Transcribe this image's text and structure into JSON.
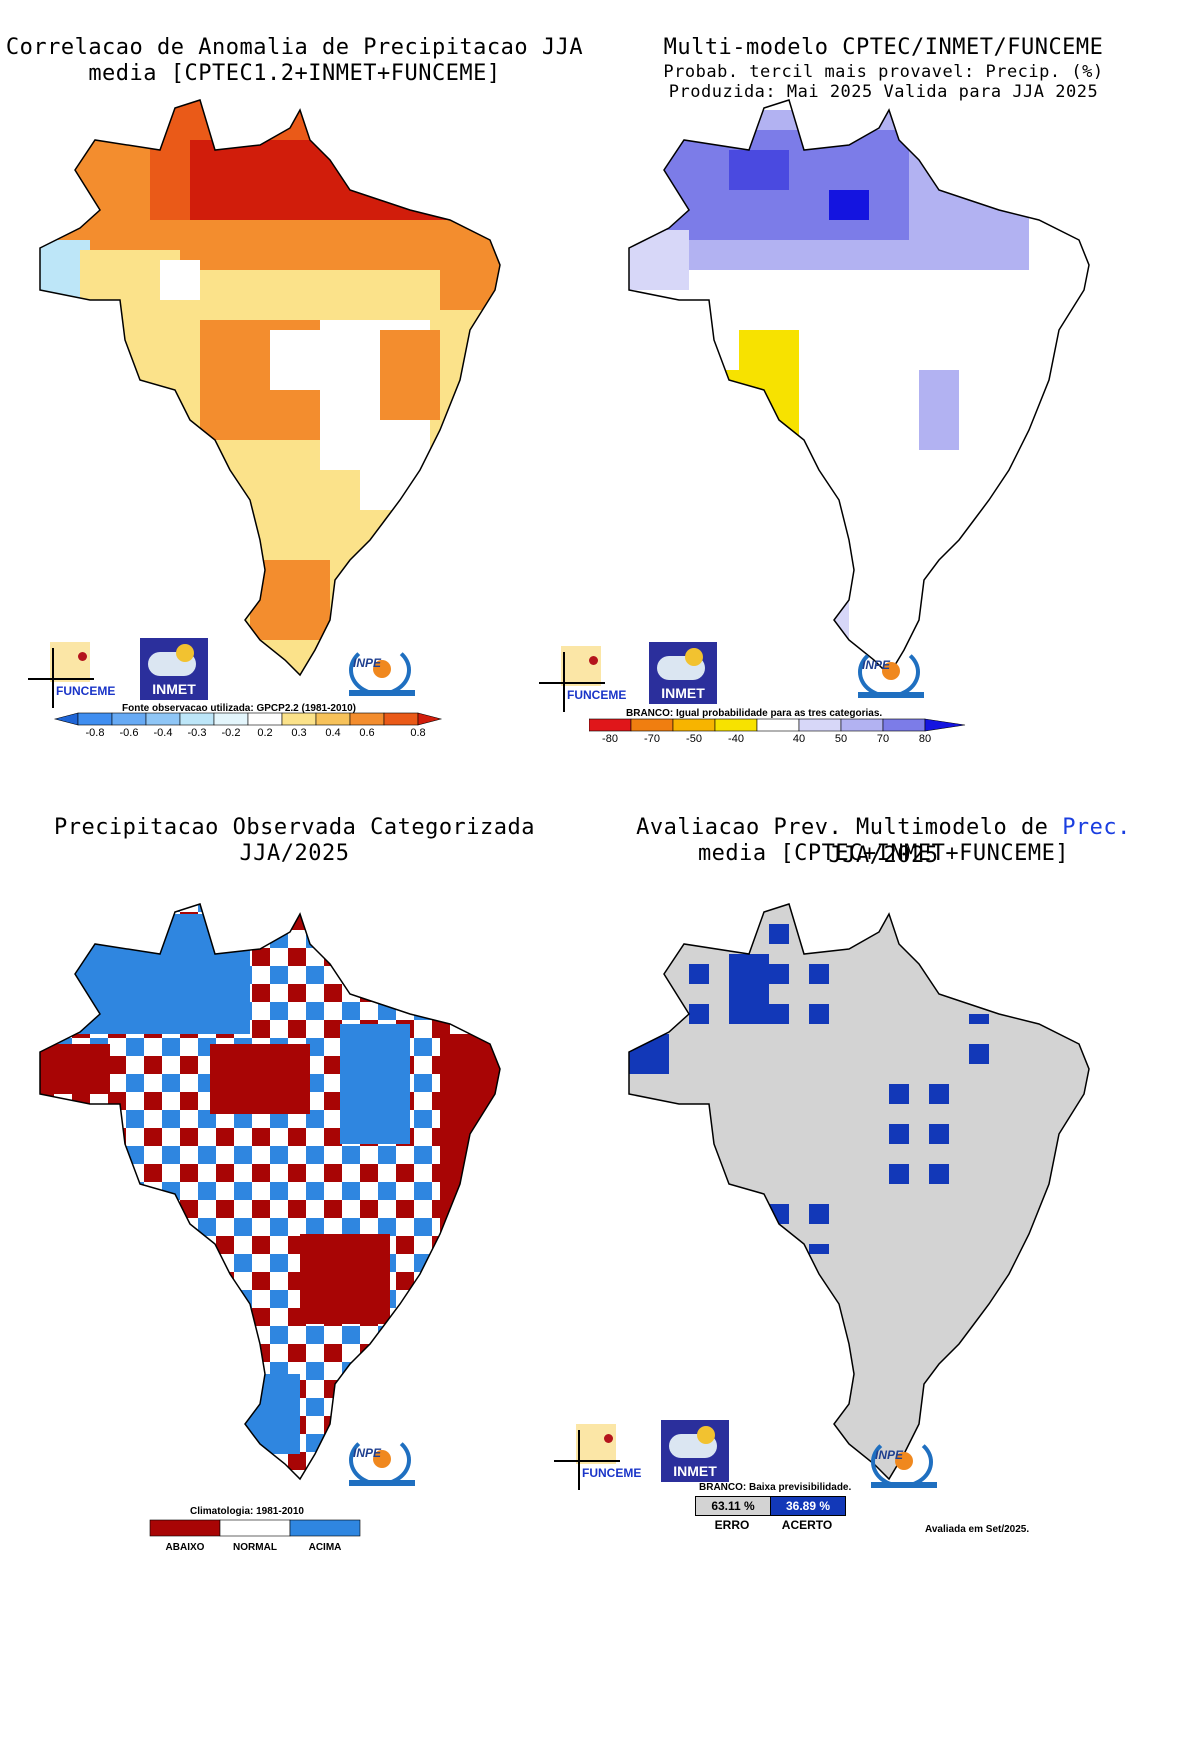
{
  "panels": [
    {
      "title_lines": [
        "Correlacao de Anomalia de Precipitacao JJA",
        "media [CPTEC1.2+INMET+FUNCEME]"
      ],
      "legend_note": "Fonte observacao utilizada: GPCP2.2 (1981-2010)",
      "legend_ticks": [
        "-0.8",
        "-0.6",
        "-0.4",
        "-0.3",
        "-0.2",
        "0.2",
        "0.3",
        "0.4",
        "0.6",
        "0.8"
      ],
      "legend_colors": [
        "#1f65d6",
        "#3f8ef0",
        "#67aaf4",
        "#8fc6f6",
        "#bde6f8",
        "#ffffff",
        "#fbe28a",
        "#f7c25a",
        "#f38d2e",
        "#ea5a18",
        "#d11d0b"
      ]
    },
    {
      "title_lines": [
        "Multi-modelo CPTEC/INMET/FUNCEME",
        "Probab. tercil mais provavel: Precip. (%)",
        "Produzida: Mai 2025  Valida para JJA 2025"
      ],
      "legend_note": "BRANCO: Igual probabilidade para as tres categorias.",
      "legend_ticks": [
        "-80",
        "-70",
        "-50",
        "-40",
        "40",
        "50",
        "70",
        "80"
      ],
      "legend_colors": [
        "#e0161a",
        "#f07e10",
        "#f7b400",
        "#f7e200",
        "#ffffff",
        "#d7d7f8",
        "#b2b2f2",
        "#7c7ce8",
        "#1414e0"
      ]
    },
    {
      "title_lines": [
        "Precipitacao Observada Categorizada",
        "JJA/2025"
      ],
      "legend_note": "Climatologia: 1981-2010",
      "legend_labels": [
        "ABAIXO",
        "NORMAL",
        "ACIMA"
      ],
      "legend_colors": [
        "#a80505",
        "#ffffff",
        "#2f86e0"
      ]
    },
    {
      "title_pre": "Avaliacao Prev. Multimodelo de ",
      "title_highlight": "Prec.",
      "title_post": " JJA/2025",
      "title_line2": "media [CPTEC+INMET+FUNCEME]",
      "highlight_color": "#1a3ee0",
      "legend_note": "BRANCO: Baixa previsibilidade.",
      "erro_value": "63.11 %",
      "acerto_value": "36.89 %",
      "erro_label": "ERRO",
      "acerto_label": "ACERTO",
      "footer": "Avaliada em Set/2025."
    }
  ],
  "logos": {
    "funceme": "FUNCEME",
    "inmet": "INMET",
    "inpe": "INPE"
  },
  "icons": [
    "funceme-logo-icon",
    "inmet-logo-icon",
    "inpe-logo-icon"
  ]
}
